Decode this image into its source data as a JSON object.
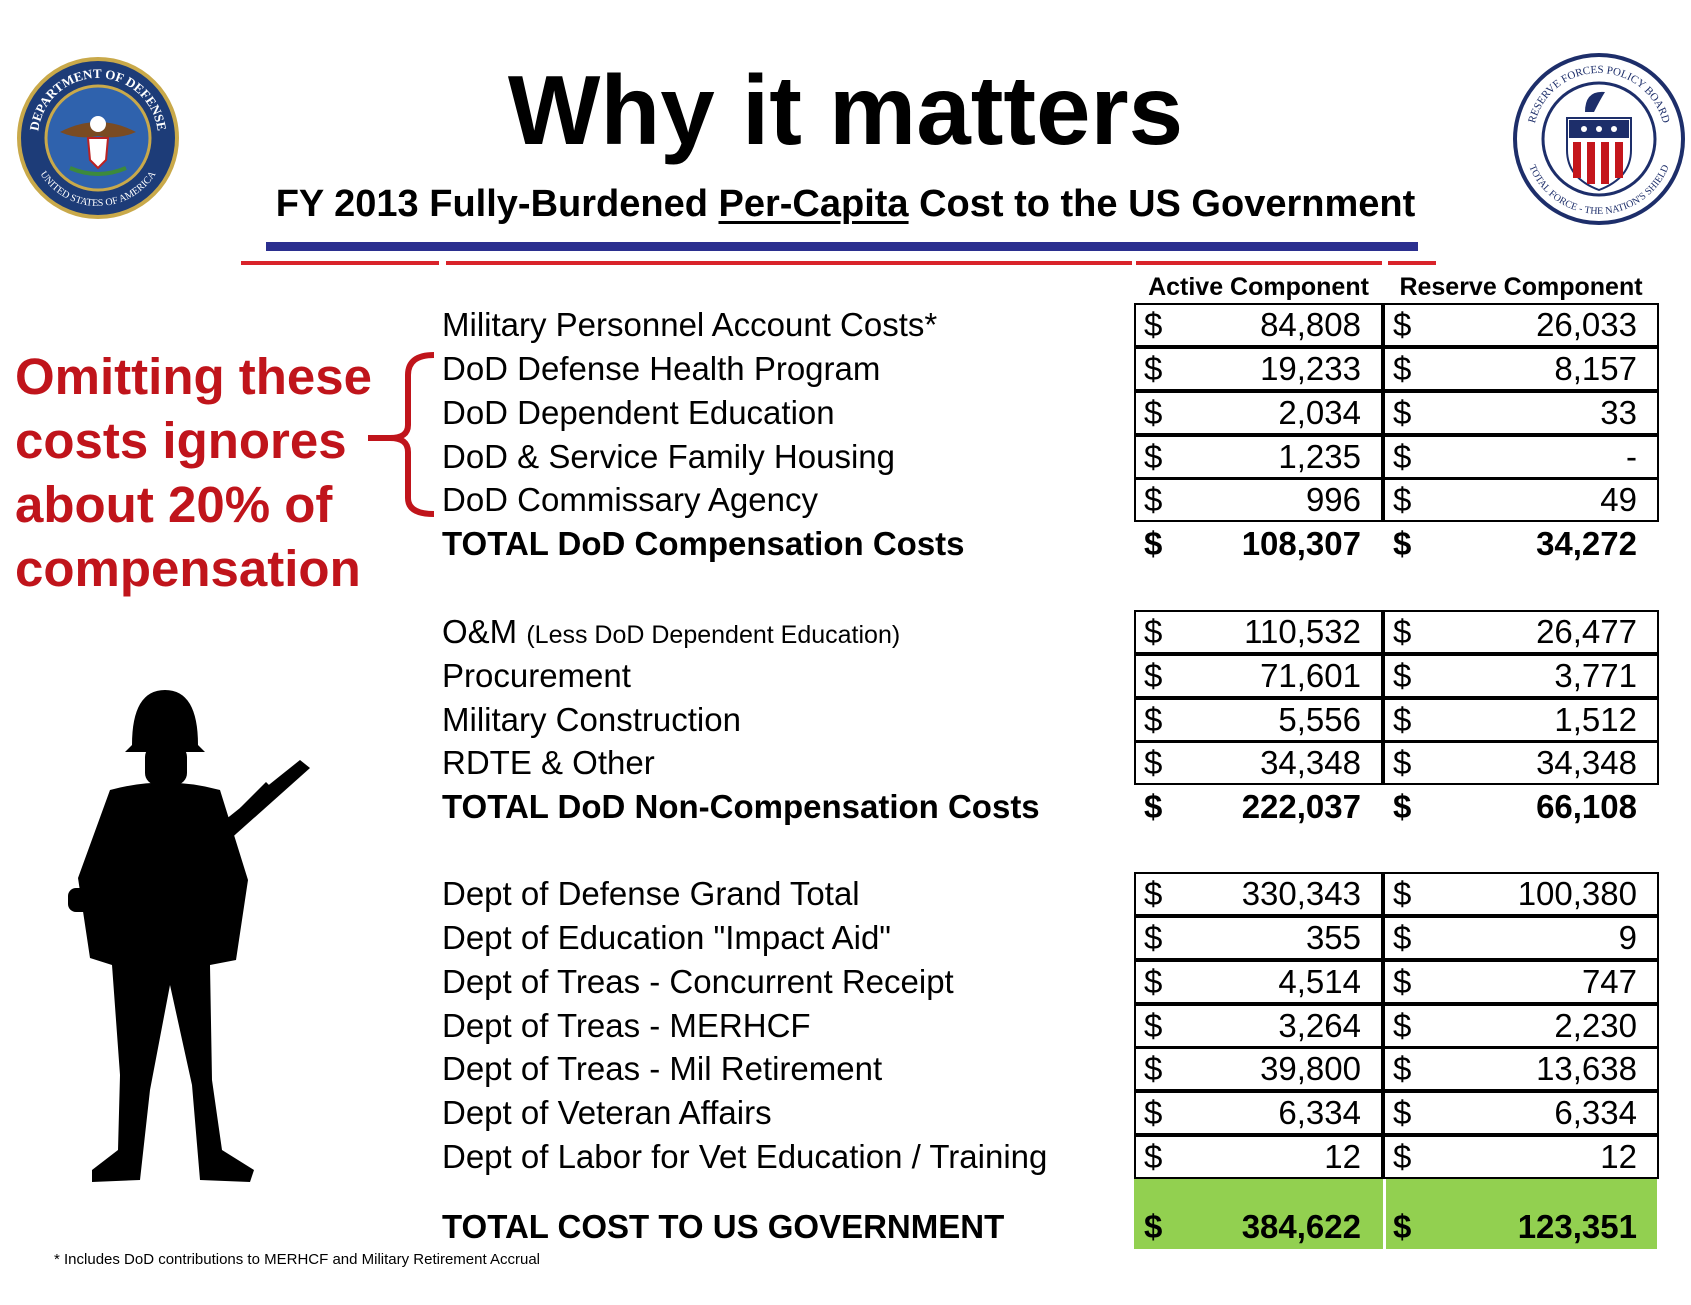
{
  "header": {
    "title": "Why it matters",
    "subtitle": {
      "lead": "FY 2013 Fully-Burdened ",
      "emphasis": "Per-Capita",
      "tail": " Cost to the US Government"
    }
  },
  "logos": {
    "left": {
      "top": "DEPARTMENT OF DEFENSE",
      "bottom": "UNITED STATES OF AMERICA"
    },
    "right": {
      "top": "RESERVE FORCES POLICY BOARD",
      "bottom": "TOTAL FORCE - THE NATION'S SHIELD"
    }
  },
  "callout": {
    "lines": [
      "Omitting these",
      "costs ignores",
      "about 20% of",
      "compensation"
    ]
  },
  "table": {
    "columns": [
      "Active Component",
      "Reserve Component"
    ],
    "currency": "$",
    "sections": [
      {
        "rows": [
          {
            "label": "Military Personnel Account Costs*",
            "active": "84,808",
            "reserve": "26,033"
          },
          {
            "label": "DoD Defense Health Program",
            "active": "19,233",
            "reserve": "8,157"
          },
          {
            "label": "DoD Dependent Education",
            "active": "2,034",
            "reserve": "33"
          },
          {
            "label": "DoD & Service Family Housing",
            "active": "1,235",
            "reserve": "-"
          },
          {
            "label": "DoD Commissary Agency",
            "active": "996",
            "reserve": "49"
          }
        ],
        "total": {
          "label": "TOTAL DoD Compensation Costs",
          "active": "108,307",
          "reserve": "34,272"
        }
      },
      {
        "rows": [
          {
            "label": "O&M",
            "note": "(Less DoD Dependent Education)",
            "active": "110,532",
            "reserve": "26,477"
          },
          {
            "label": "Procurement",
            "active": "71,601",
            "reserve": "3,771"
          },
          {
            "label": "Military Construction",
            "active": "5,556",
            "reserve": "1,512"
          },
          {
            "label": "RDTE & Other",
            "active": "34,348",
            "reserve": "34,348"
          }
        ],
        "total": {
          "label": "TOTAL DoD Non-Compensation Costs",
          "active": "222,037",
          "reserve": "66,108"
        }
      },
      {
        "rows": [
          {
            "label": "Dept of Defense Grand Total",
            "active": "330,343",
            "reserve": "100,380"
          },
          {
            "label": "Dept of Education \"Impact Aid\"",
            "active": "355",
            "reserve": "9"
          },
          {
            "label": "Dept of Treas - Concurrent Receipt",
            "active": "4,514",
            "reserve": "747"
          },
          {
            "label": "Dept of Treas - MERHCF",
            "active": "3,264",
            "reserve": "2,230"
          },
          {
            "label": "Dept of Treas - Mil Retirement",
            "active": "39,800",
            "reserve": "13,638"
          },
          {
            "label": "Dept of Veteran Affairs",
            "active": "6,334",
            "reserve": "6,334"
          },
          {
            "label": "Dept of Labor for Vet Education / Training",
            "active": "12",
            "reserve": "12"
          }
        ]
      }
    ],
    "grand_total": {
      "label": "TOTAL COST TO US GOVERNMENT",
      "active": "384,622",
      "reserve": "123,351"
    }
  },
  "footnote": "* Includes DoD contributions to MERHCF and Military Retirement Accrual"
}
